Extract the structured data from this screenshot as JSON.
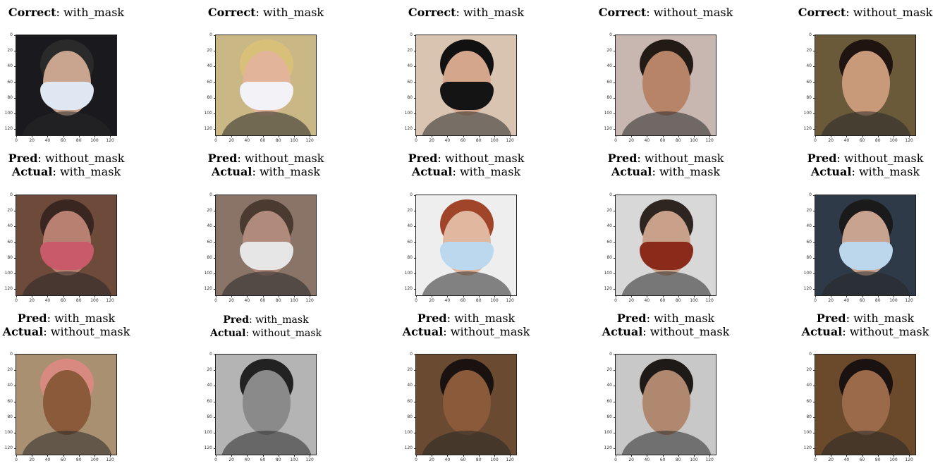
{
  "label_keys": {
    "correct": "Correct",
    "pred": "Pred",
    "actual": "Actual"
  },
  "ticks": [
    "0",
    "20",
    "40",
    "60",
    "80",
    "100",
    "120"
  ],
  "rows": [
    {
      "cells": [
        {
          "type": "correct",
          "correct": "with_mask",
          "bg": "#1a1a1e",
          "face": "#c9a48e",
          "mask": "#dfe8f2",
          "hair": "#2a2a2a"
        },
        {
          "type": "correct",
          "correct": "with_mask",
          "bg": "#c9b886",
          "face": "#e2b59a",
          "mask": "#f2f2f7",
          "hair": "#d8c078"
        },
        {
          "type": "correct",
          "correct": "with_mask",
          "bg": "#d8c4b0",
          "face": "#d4a78c",
          "mask": "#141414",
          "hair": "#111111"
        },
        {
          "type": "correct",
          "correct": "without_mask",
          "bg": "#c8b6b0",
          "face": "#b88468",
          "mask": null,
          "hair": "#221a15"
        },
        {
          "type": "correct",
          "correct": "without_mask",
          "bg": "#6b5a3a",
          "face": "#c89a7a",
          "mask": null,
          "hair": "#1f1410"
        }
      ]
    },
    {
      "cells": [
        {
          "type": "wrong",
          "pred": "without_mask",
          "actual": "with_mask",
          "bg": "#6e4a3a",
          "face": "#b88070",
          "mask": "#c85a6a",
          "hair": "#3a2620"
        },
        {
          "type": "wrong",
          "pred": "without_mask",
          "actual": "with_mask",
          "bg": "#8a7468",
          "face": "#b08a7a",
          "mask": "#e6e6e6",
          "hair": "#4a3a30"
        },
        {
          "type": "wrong",
          "pred": "without_mask",
          "actual": "with_mask",
          "bg": "#eeeeee",
          "face": "#e0b8a0",
          "mask": "#bcd8ee",
          "hair": "#a0442a"
        },
        {
          "type": "wrong",
          "pred": "without_mask",
          "actual": "with_mask",
          "bg": "#d8d8d8",
          "face": "#c9a08a",
          "mask": "#8a2a1a",
          "hair": "#2e2420"
        },
        {
          "type": "wrong",
          "pred": "without_mask",
          "actual": "with_mask",
          "bg": "#2e3a48",
          "face": "#c8a490",
          "mask": "#bcd6ec",
          "hair": "#1a1a1a"
        }
      ]
    },
    {
      "cells": [
        {
          "type": "wrong",
          "pred": "with_mask",
          "actual": "without_mask",
          "bg": "#a89070",
          "face": "#8a5a3a",
          "mask": null,
          "hair": "#d88a80",
          "small": false
        },
        {
          "type": "wrong",
          "pred": "with_mask",
          "actual": "without_mask",
          "bg": "#b4b4b4",
          "face": "#8a8a8a",
          "mask": null,
          "hair": "#222222",
          "small": true
        },
        {
          "type": "wrong",
          "pred": "with_mask",
          "actual": "without_mask",
          "bg": "#6a4a30",
          "face": "#8a5a3a",
          "mask": null,
          "hair": "#1a1210",
          "small": false
        },
        {
          "type": "wrong",
          "pred": "with_mask",
          "actual": "without_mask",
          "bg": "#c8c8c8",
          "face": "#b08870",
          "mask": null,
          "hair": "#1e1a18",
          "small": false
        },
        {
          "type": "wrong",
          "pred": "with_mask",
          "actual": "without_mask",
          "bg": "#6a4a2a",
          "face": "#9a6a4a",
          "mask": null,
          "hair": "#1a1210",
          "small": false
        }
      ]
    }
  ]
}
